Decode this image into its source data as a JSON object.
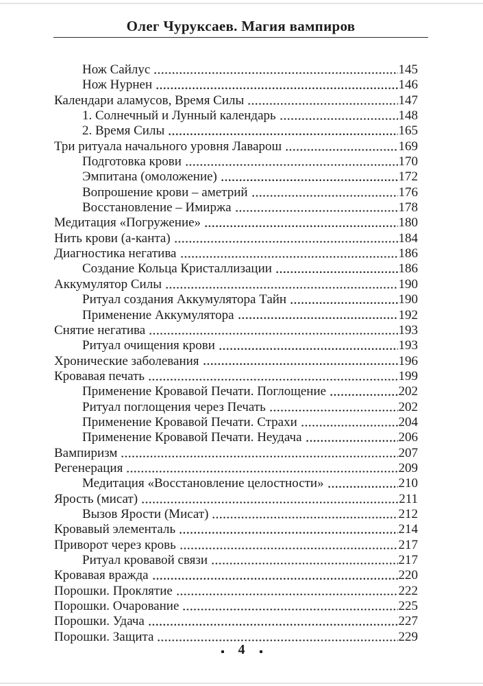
{
  "header": {
    "title": "Олег Чуруксаев. Магия вампиров"
  },
  "toc": {
    "entries": [
      {
        "title": "Нож Сайлус",
        "page": "145",
        "indent": 1
      },
      {
        "title": "Нож Нурнен",
        "page": "146",
        "indent": 1
      },
      {
        "title": "Календари аламусов, Время Силы",
        "page": "147",
        "indent": 0
      },
      {
        "title": "1. Солнечный и Лунный календарь",
        "page": "148",
        "indent": 1
      },
      {
        "title": "2. Время Силы",
        "page": "165",
        "indent": 1
      },
      {
        "title": "Три ритуала начального уровня Лаварош",
        "page": "169",
        "indent": 0
      },
      {
        "title": "Подготовка крови",
        "page": "170",
        "indent": 1
      },
      {
        "title": "Эмпитана (омоложение)",
        "page": "172",
        "indent": 1
      },
      {
        "title": "Вопрошение крови – аметрий",
        "page": "176",
        "indent": 1
      },
      {
        "title": "Восстановление – Имиржа",
        "page": "178",
        "indent": 1
      },
      {
        "title": "Медитация «Погружение»",
        "page": "180",
        "indent": 0
      },
      {
        "title": "Нить крови (а-канта)",
        "page": "184",
        "indent": 0
      },
      {
        "title": "Диагностика негатива",
        "page": "186",
        "indent": 0
      },
      {
        "title": "Создание Кольца Кристаллизации",
        "page": "186",
        "indent": 1
      },
      {
        "title": "Аккумулятор Силы",
        "page": "190",
        "indent": 0
      },
      {
        "title": "Ритуал создания Аккумулятора Тайн",
        "page": "190",
        "indent": 1
      },
      {
        "title": "Применение Аккумулятора",
        "page": "192",
        "indent": 1
      },
      {
        "title": "Снятие негатива",
        "page": "193",
        "indent": 0
      },
      {
        "title": "Ритуал очищения крови",
        "page": "193",
        "indent": 1
      },
      {
        "title": "Хронические заболевания",
        "page": "196",
        "indent": 0
      },
      {
        "title": "Кровавая печать",
        "page": "199",
        "indent": 0
      },
      {
        "title": "Применение Кровавой Печати. Поглощение",
        "page": "202",
        "indent": 1
      },
      {
        "title": "Ритуал поглощения через Печать",
        "page": "202",
        "indent": 1
      },
      {
        "title": "Применение Кровавой Печати. Страхи",
        "page": "204",
        "indent": 1
      },
      {
        "title": "Применение Кровавой Печати. Неудача",
        "page": "206",
        "indent": 1
      },
      {
        "title": "Вампиризм",
        "page": "207",
        "indent": 0
      },
      {
        "title": "Регенерация",
        "page": "209",
        "indent": 0
      },
      {
        "title": "Медитация «Восстановление целостности»",
        "page": "210",
        "indent": 1
      },
      {
        "title": "Ярость (мисат)",
        "page": "211",
        "indent": 0
      },
      {
        "title": "Вызов Ярости (Мисат)",
        "page": "212",
        "indent": 1
      },
      {
        "title": "Кровавый элементаль",
        "page": "214",
        "indent": 0
      },
      {
        "title": "Приворот через кровь",
        "page": "217",
        "indent": 0
      },
      {
        "title": "Ритуал кровавой связи",
        "page": "217",
        "indent": 1
      },
      {
        "title": "Кровавая вражда",
        "page": "220",
        "indent": 0
      },
      {
        "title": "Порошки. Проклятие",
        "page": "222",
        "indent": 0
      },
      {
        "title": "Порошки. Очарование",
        "page": "225",
        "indent": 0
      },
      {
        "title": "Порошки. Удача",
        "page": "227",
        "indent": 0
      },
      {
        "title": "Порошки. Защита",
        "page": "229",
        "indent": 0
      }
    ]
  },
  "footer": {
    "page_number": "4"
  },
  "colors": {
    "text": "#1c1c1c",
    "background": "#ffffff"
  }
}
